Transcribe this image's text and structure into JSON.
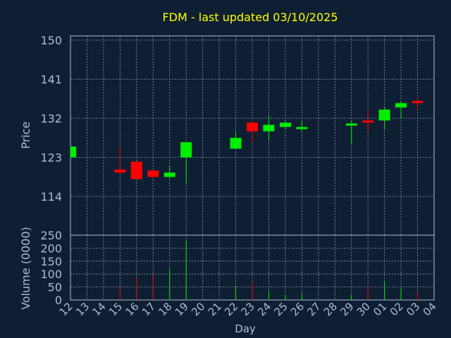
{
  "chart_data": {
    "type": "candlestick",
    "title": "FDM - last updated 03/10/2025",
    "xlabel": "Day",
    "ylabel": "Price",
    "volume_label": "Volume (0000)",
    "price_ticks": [
      114,
      123,
      132,
      141,
      150
    ],
    "volume_ticks": [
      0,
      50,
      100,
      150,
      200,
      250
    ],
    "price_range": [
      105,
      151
    ],
    "volume_range": [
      0,
      250
    ],
    "x_ticks": [
      "12",
      "13",
      "14",
      "15",
      "16",
      "17",
      "18",
      "19",
      "20",
      "21",
      "22",
      "23",
      "24",
      "25",
      "26",
      "27",
      "28",
      "29",
      "30",
      "01",
      "02",
      "03",
      "04"
    ],
    "candles": [
      {
        "day": "12",
        "open": 123.0,
        "close": 125.5,
        "high": 125.5,
        "low": 123.0,
        "volume": 0
      },
      {
        "day": "15",
        "open": 120.2,
        "close": 119.5,
        "high": 125.5,
        "low": 119.0,
        "volume": 50
      },
      {
        "day": "16",
        "open": 122.0,
        "close": 118.0,
        "high": 122.0,
        "low": 118.0,
        "volume": 85
      },
      {
        "day": "17",
        "open": 120.0,
        "close": 118.5,
        "high": 120.0,
        "low": 118.0,
        "volume": 98
      },
      {
        "day": "18",
        "open": 118.5,
        "close": 119.5,
        "high": 121.0,
        "low": 118.0,
        "volume": 122
      },
      {
        "day": "19",
        "open": 123.0,
        "close": 126.5,
        "high": 126.5,
        "low": 117.0,
        "volume": 232
      },
      {
        "day": "22",
        "open": 125.0,
        "close": 127.5,
        "high": 129.0,
        "low": 125.0,
        "volume": 52
      },
      {
        "day": "23",
        "open": 131.0,
        "close": 129.0,
        "high": 131.5,
        "low": 126.5,
        "volume": 70
      },
      {
        "day": "24",
        "open": 129.0,
        "close": 130.5,
        "high": 132.5,
        "low": 127.0,
        "volume": 35
      },
      {
        "day": "25",
        "open": 130.0,
        "close": 131.0,
        "high": 131.5,
        "low": 129.5,
        "volume": 20
      },
      {
        "day": "26",
        "open": 129.8,
        "close": 130.0,
        "high": 131.5,
        "low": 129.0,
        "volume": 25
      },
      {
        "day": "29",
        "open": 130.5,
        "close": 130.8,
        "high": 131.5,
        "low": 126.0,
        "volume": 20
      },
      {
        "day": "30",
        "open": 131.5,
        "close": 131.0,
        "high": 134.0,
        "low": 129.0,
        "volume": 55
      },
      {
        "day": "01",
        "open": 131.5,
        "close": 134.0,
        "high": 134.5,
        "low": 129.5,
        "volume": 70
      },
      {
        "day": "02",
        "open": 134.5,
        "close": 135.5,
        "high": 136.0,
        "low": 132.0,
        "volume": 45
      },
      {
        "day": "03",
        "open": 136.0,
        "close": 135.5,
        "high": 136.5,
        "low": 134.0,
        "volume": 28
      }
    ],
    "grid": true,
    "colors": {
      "background": "#0f1f33",
      "plot_background": "#0f1f33",
      "up": "#00ee00",
      "down": "#ff0000",
      "title": "#ffff00",
      "axis_text": "#a9bcd6",
      "frame": "#a9bcd6",
      "grid": "#a9bcd6"
    }
  }
}
